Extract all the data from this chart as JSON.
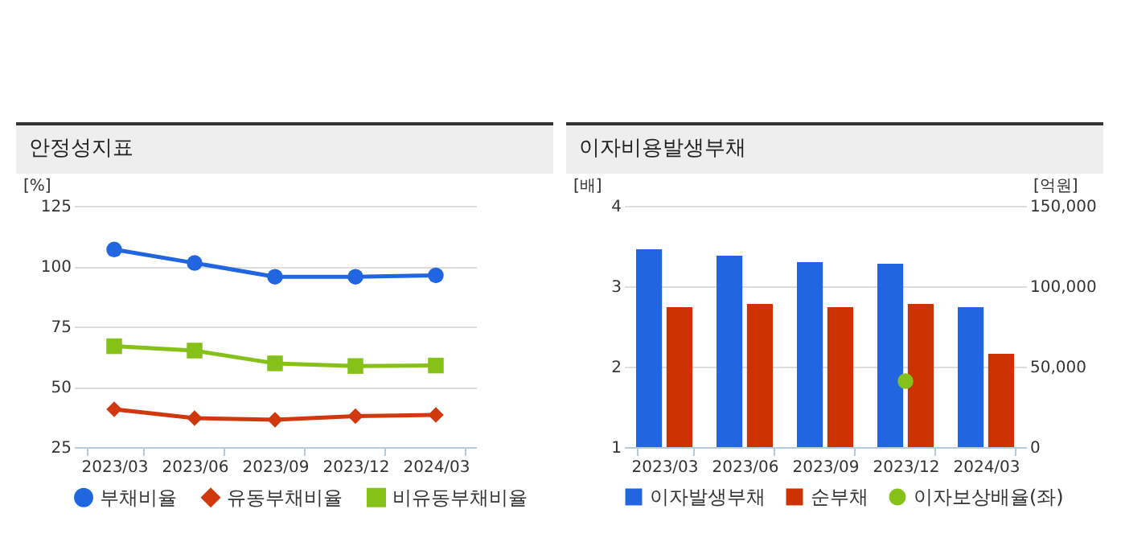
{
  "chart_data": [
    {
      "type": "line",
      "title": "안정성지표",
      "ylabel": "[%]",
      "categories": [
        "2023/03",
        "2023/06",
        "2023/09",
        "2023/12",
        "2024/03"
      ],
      "ylim": [
        25,
        125
      ],
      "yticks": [
        25,
        50,
        75,
        100,
        125
      ],
      "grid": "y",
      "legend": "bottom",
      "series": [
        {
          "name": "부채비율",
          "color": "#2166e0",
          "marker": "circle",
          "values": [
            106.9,
            101.3,
            95.6,
            95.6,
            96.2
          ]
        },
        {
          "name": "유동부채비율",
          "color": "#d0380e",
          "marker": "diamond",
          "values": [
            40.7,
            37.0,
            36.3,
            37.8,
            38.3
          ]
        },
        {
          "name": "비유동부채비율",
          "color": "#86c11a",
          "marker": "square",
          "values": [
            66.8,
            65.0,
            59.7,
            58.6,
            58.8
          ]
        }
      ]
    },
    {
      "type": "bar",
      "title": "이자비용발생부채",
      "ylabel": "[배]",
      "y2label": "[억원]",
      "categories": [
        "2023/03",
        "2023/06",
        "2023/09",
        "2023/12",
        "2024/03"
      ],
      "ylim": [
        1,
        4
      ],
      "yticks": [
        1,
        2,
        3,
        4
      ],
      "y2lim": [
        0,
        150000
      ],
      "y2ticks": [
        0,
        {
          "value": 50000,
          "label": "50,000"
        },
        {
          "value": 100000,
          "label": "100,000"
        },
        {
          "value": 150000,
          "label": "150,000"
        }
      ],
      "grid": "y",
      "legend": "bottom",
      "series": [
        {
          "name": "이자발생부채",
          "color": "#2166e0",
          "axis": "y2",
          "values": [
            123000,
            119000,
            115000,
            114000,
            87000
          ]
        },
        {
          "name": "순부채",
          "color": "#cc3300",
          "axis": "y2",
          "values": [
            87000,
            89000,
            87000,
            89000,
            58000
          ]
        },
        {
          "name": "이자보상배율(좌)",
          "type": "scatter",
          "color": "#86c11a",
          "marker": "circle",
          "values": [
            null,
            null,
            null,
            1.82,
            null
          ]
        }
      ]
    }
  ]
}
